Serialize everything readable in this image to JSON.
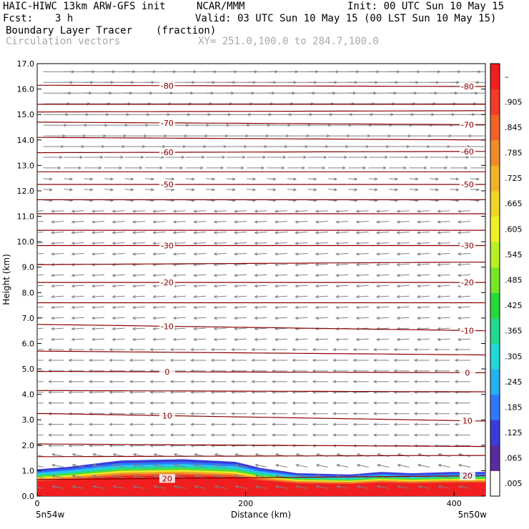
{
  "header": {
    "model": "HAIC-HIWC 13km ARW-GFS init",
    "org": "NCAR/MMM",
    "init": "Init: 00 UTC Sun 10 May 15",
    "fcst_label": "Fcst:",
    "fcst_value": "3 h",
    "valid": "Valid: 03 UTC Sun 10 May 15 (00 LST Sun 10 May 15)",
    "field": "Boundary Layer Tracer",
    "field_units": "(fraction)",
    "vectors": "Circulation vectors",
    "xy": "XY= 251.0,100.0 to 284.7,100.0"
  },
  "colors": {
    "contour": "#8b0000",
    "vector": "#808080",
    "scale": [
      "#ffffff",
      "#5a2ca0",
      "#3a3cd8",
      "#2e78ff",
      "#27b0f0",
      "#23d8d8",
      "#23d890",
      "#28d83c",
      "#78e628",
      "#b8f028",
      "#f0f028",
      "#f0d428",
      "#f0b428",
      "#f08c28",
      "#f06428",
      "#f03c28",
      "#f01e1e"
    ]
  },
  "chart_data": {
    "type": "heatmap",
    "xlabel": "Distance (km)",
    "ylabel": "Height (km)",
    "xlim": [
      0,
      430
    ],
    "ylim": [
      0.0,
      17.0
    ],
    "x_ticks": [
      0,
      200,
      400
    ],
    "y_ticks": [
      "0.0",
      "1.0",
      "2.0",
      "3.0",
      "4.0",
      "5.0",
      "6.0",
      "7.0",
      "8.0",
      "9.0",
      "10.0",
      "11.0",
      "12.0",
      "13.0",
      "14.0",
      "15.0",
      "16.0",
      "17.0"
    ],
    "endpoints": {
      "left": "5n54w",
      "right": "5n50w"
    },
    "colorbar_labels": [
      ".005",
      ".065",
      ".125",
      ".185",
      ".245",
      ".305",
      ".365",
      ".425",
      ".485",
      ".545",
      ".605",
      ".665",
      ".725",
      ".785",
      ".845",
      ".905",
      "–"
    ],
    "tracer_top_km": [
      [
        0,
        1.05
      ],
      [
        30,
        1.15
      ],
      [
        80,
        1.4
      ],
      [
        140,
        1.45
      ],
      [
        190,
        1.35
      ],
      [
        215,
        1.1
      ],
      [
        250,
        0.9
      ],
      [
        300,
        0.85
      ],
      [
        330,
        0.95
      ],
      [
        360,
        0.9
      ],
      [
        400,
        0.95
      ],
      [
        430,
        0.95
      ]
    ],
    "temperature_contours": [
      {
        "value": 20,
        "label": "20",
        "heights_km": [
          0.65,
          0.8
        ]
      },
      {
        "value": 10,
        "label": "10",
        "heights_km": [
          3.25,
          2.95
        ]
      },
      {
        "value": 0,
        "label": "0",
        "heights_km": [
          4.9,
          4.85
        ]
      },
      {
        "value": -10,
        "label": "-10",
        "heights_km": [
          6.75,
          6.5
        ]
      },
      {
        "value": -20,
        "label": "-20",
        "heights_km": [
          8.4,
          8.4
        ]
      },
      {
        "value": -30,
        "label": "-30",
        "heights_km": [
          9.85,
          9.85
        ]
      },
      {
        "value": -50,
        "label": "-50",
        "heights_km": [
          12.25,
          12.25
        ]
      },
      {
        "value": -60,
        "label": "-60",
        "heights_km": [
          13.5,
          13.55
        ]
      },
      {
        "value": -70,
        "label": "-70",
        "heights_km": [
          14.7,
          14.6
        ]
      },
      {
        "value": -80,
        "label": "-80",
        "heights_km": [
          16.15,
          16.1
        ]
      }
    ],
    "unlabeled_contour_heights_km": [
      [
        1.55,
        1.6
      ],
      [
        2.05,
        1.95
      ],
      [
        4.15,
        4.1
      ],
      [
        5.7,
        5.55
      ],
      [
        7.6,
        7.6
      ],
      [
        9.1,
        9.2
      ],
      [
        10.45,
        10.45
      ],
      [
        11.1,
        11.1
      ],
      [
        11.65,
        11.65
      ],
      [
        12.75,
        12.75
      ],
      [
        14.1,
        14.0
      ],
      [
        15.1,
        15.15
      ],
      [
        15.4,
        15.4
      ]
    ]
  }
}
